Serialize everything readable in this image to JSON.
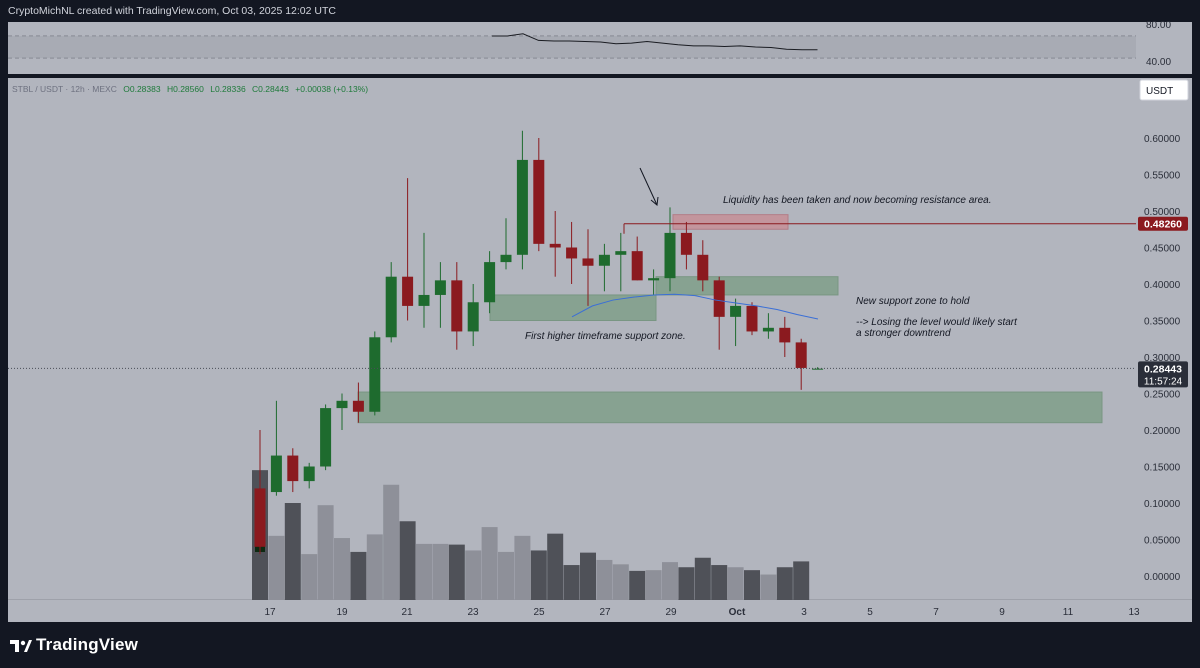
{
  "header": {
    "credit": "CryptoMichNL created with TradingView.com, Oct 03, 2025 12:02 UTC"
  },
  "symbol_bar": {
    "pair": "STBL / USDT · 12h · MEXC",
    "open": "O0.28383",
    "high": "H0.28560",
    "low": "L0.28336",
    "close": "C0.28443",
    "change": "+0.00038 (+0.13%)"
  },
  "currency_label": "USDT",
  "price_badges": {
    "resistance": "0.48260",
    "last": "0.28443",
    "countdown": "11:57:24"
  },
  "annotations": {
    "liquidity": "Liquidity has been taken and now becoming resistance area.",
    "new_support": "New support zone to hold",
    "losing_1": "--> Losing the level would likely start",
    "losing_2": "a stronger downtrend",
    "first_support": "First higher timeframe support zone."
  },
  "footer": {
    "brand": "TradingView"
  },
  "colors": {
    "background": "#b2b5be",
    "bull": "#1e6b2e",
    "bear": "#8b1a1f",
    "support_zone": "#7d9e86",
    "resistance_zone": "#c98b93",
    "ma_line": "#3b6fd6",
    "volume_dark": "#4f5158",
    "volume_light": "#8e9099"
  },
  "chart_data": [
    {
      "type": "line",
      "name": "oscillator",
      "y_ticks": [
        "80.00",
        "40.00"
      ],
      "values": [
        80,
        80,
        84,
        72,
        71,
        71,
        70,
        69,
        66,
        67,
        70,
        67,
        64,
        62,
        62,
        61,
        62,
        60,
        59,
        56,
        55,
        55
      ]
    },
    {
      "type": "candlestick",
      "x_ticks": [
        "17",
        "19",
        "21",
        "23",
        "25",
        "27",
        "29",
        "Oct",
        "3",
        "5",
        "7",
        "9",
        "11",
        "13"
      ],
      "y_ticks": [
        "0.00000",
        "0.05000",
        "0.10000",
        "0.15000",
        "0.20000",
        "0.25000",
        "0.30000",
        "0.35000",
        "0.40000",
        "0.45000",
        "0.50000",
        "0.55000",
        "0.60000"
      ],
      "ylim": [
        -0.03,
        0.65
      ],
      "candles": [
        {
          "o": 0.12,
          "h": 0.2,
          "l": 0.03,
          "c": 0.04
        },
        {
          "o": 0.115,
          "h": 0.24,
          "l": 0.11,
          "c": 0.165
        },
        {
          "o": 0.165,
          "h": 0.175,
          "l": 0.115,
          "c": 0.13
        },
        {
          "o": 0.13,
          "h": 0.155,
          "l": 0.12,
          "c": 0.15
        },
        {
          "o": 0.15,
          "h": 0.235,
          "l": 0.145,
          "c": 0.23
        },
        {
          "o": 0.23,
          "h": 0.25,
          "l": 0.2,
          "c": 0.24
        },
        {
          "o": 0.24,
          "h": 0.265,
          "l": 0.21,
          "c": 0.225
        },
        {
          "o": 0.225,
          "h": 0.335,
          "l": 0.22,
          "c": 0.327
        },
        {
          "o": 0.327,
          "h": 0.43,
          "l": 0.32,
          "c": 0.41
        },
        {
          "o": 0.41,
          "h": 0.545,
          "l": 0.35,
          "c": 0.37
        },
        {
          "o": 0.37,
          "h": 0.47,
          "l": 0.34,
          "c": 0.385
        },
        {
          "o": 0.385,
          "h": 0.43,
          "l": 0.34,
          "c": 0.405
        },
        {
          "o": 0.405,
          "h": 0.43,
          "l": 0.31,
          "c": 0.335
        },
        {
          "o": 0.335,
          "h": 0.4,
          "l": 0.315,
          "c": 0.375
        },
        {
          "o": 0.375,
          "h": 0.445,
          "l": 0.36,
          "c": 0.43
        },
        {
          "o": 0.43,
          "h": 0.49,
          "l": 0.42,
          "c": 0.44
        },
        {
          "o": 0.44,
          "h": 0.61,
          "l": 0.42,
          "c": 0.57
        },
        {
          "o": 0.57,
          "h": 0.6,
          "l": 0.445,
          "c": 0.455
        },
        {
          "o": 0.455,
          "h": 0.5,
          "l": 0.41,
          "c": 0.45
        },
        {
          "o": 0.45,
          "h": 0.485,
          "l": 0.4,
          "c": 0.435
        },
        {
          "o": 0.435,
          "h": 0.475,
          "l": 0.37,
          "c": 0.425
        },
        {
          "o": 0.425,
          "h": 0.455,
          "l": 0.39,
          "c": 0.44
        },
        {
          "o": 0.44,
          "h": 0.47,
          "l": 0.39,
          "c": 0.445
        },
        {
          "o": 0.445,
          "h": 0.465,
          "l": 0.405,
          "c": 0.405
        },
        {
          "o": 0.405,
          "h": 0.42,
          "l": 0.385,
          "c": 0.408
        },
        {
          "o": 0.408,
          "h": 0.505,
          "l": 0.39,
          "c": 0.47
        },
        {
          "o": 0.47,
          "h": 0.485,
          "l": 0.42,
          "c": 0.44
        },
        {
          "o": 0.44,
          "h": 0.46,
          "l": 0.39,
          "c": 0.405
        },
        {
          "o": 0.405,
          "h": 0.41,
          "l": 0.31,
          "c": 0.355
        },
        {
          "o": 0.355,
          "h": 0.38,
          "l": 0.315,
          "c": 0.37
        },
        {
          "o": 0.37,
          "h": 0.375,
          "l": 0.33,
          "c": 0.335
        },
        {
          "o": 0.335,
          "h": 0.36,
          "l": 0.325,
          "c": 0.34
        },
        {
          "o": 0.34,
          "h": 0.355,
          "l": 0.3,
          "c": 0.32
        },
        {
          "o": 0.32,
          "h": 0.325,
          "l": 0.255,
          "c": 0.285
        },
        {
          "o": 0.284,
          "h": 0.286,
          "l": 0.283,
          "c": 0.284
        }
      ],
      "volume": [
        0.145,
        0.055,
        0.1,
        0.03,
        0.097,
        0.052,
        0.033,
        0.057,
        0.125,
        0.075,
        0.044,
        0.044,
        0.043,
        0.035,
        0.067,
        0.033,
        0.055,
        0.035,
        0.058,
        0.015,
        0.032,
        0.022,
        0.016,
        0.007,
        0.008,
        0.019,
        0.012,
        0.025,
        0.015,
        0.012,
        0.008,
        0.002,
        0.012,
        0.02,
        0.0
      ],
      "volume_overlay": [
        0.115,
        0.0,
        0.0,
        0.0,
        0.0,
        0.0,
        0.0,
        0.0,
        0.0,
        0.0,
        0.0,
        0.0,
        0.0,
        0.0,
        0.0,
        0.0,
        0.0,
        0.0,
        0.0,
        0.0,
        0.0,
        0.0,
        0.0,
        0.0,
        0.0,
        0.0,
        0.0,
        0.0,
        0.0,
        0.0,
        0.0,
        0.0,
        0.0,
        0.0,
        0.0
      ],
      "ma": [
        0.355,
        0.37,
        0.378,
        0.382,
        0.385,
        0.386,
        0.384,
        0.378,
        0.374,
        0.37,
        0.365,
        0.358,
        0.352
      ],
      "zones": [
        {
          "name": "first-support",
          "y0": 0.35,
          "y1": 0.385
        },
        {
          "name": "new-support",
          "y0": 0.385,
          "y1": 0.41
        },
        {
          "name": "resistance",
          "y0": 0.475,
          "y1": 0.495
        },
        {
          "name": "lower-support",
          "y0": 0.21,
          "y1": 0.252
        }
      ],
      "resistance_level": 0.4826,
      "last_price": 0.28443
    }
  ]
}
